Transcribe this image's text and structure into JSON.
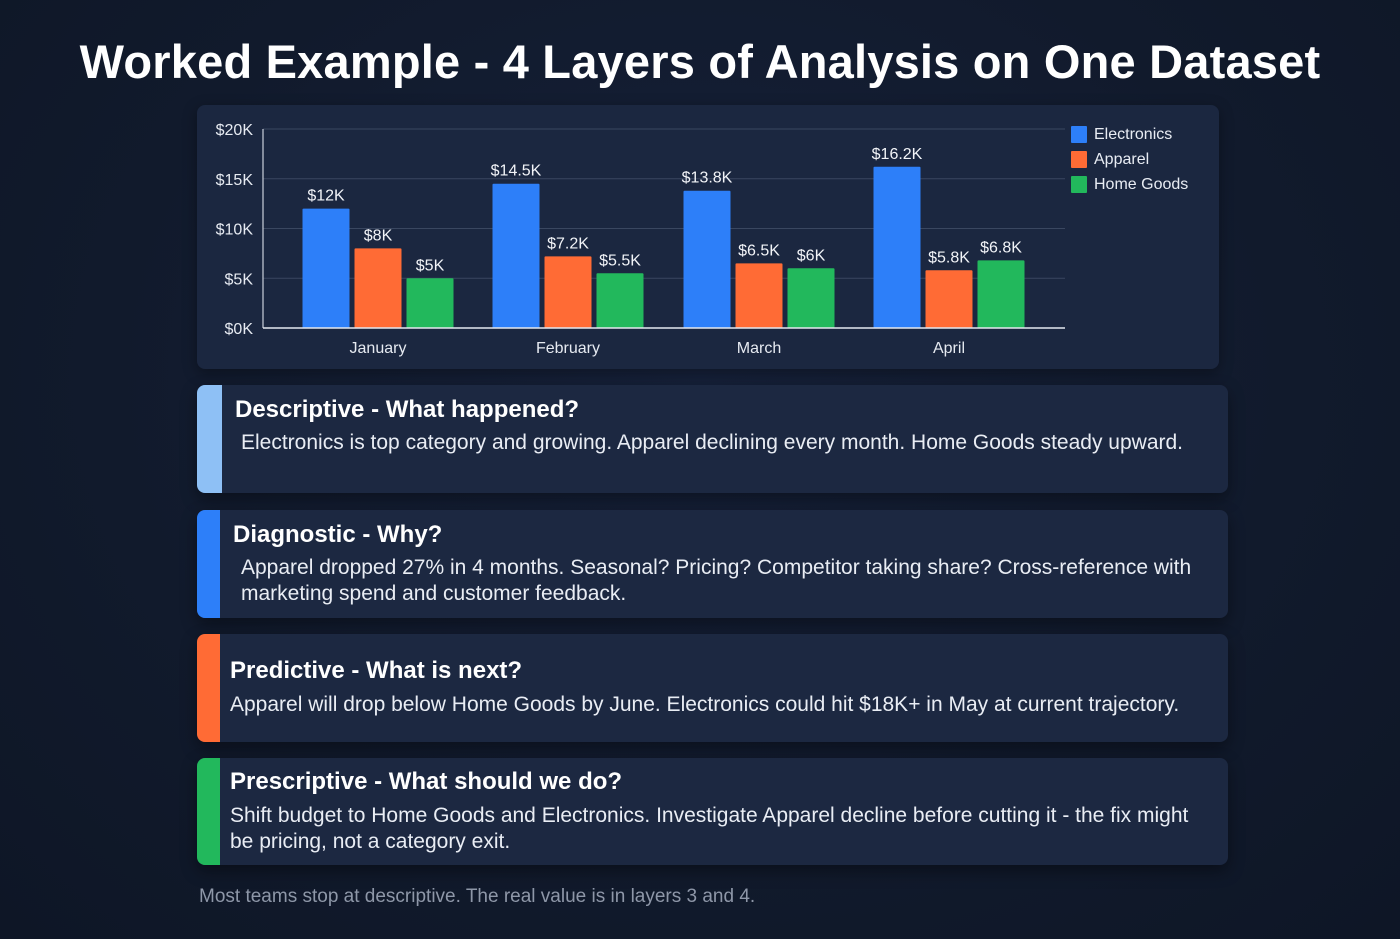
{
  "title": "Worked Example - 4 Layers of Analysis on One Dataset",
  "colors": {
    "background": "#111a2c",
    "panel": "#1b2740",
    "electronics": "#2d7ff9",
    "apparel": "#ff6b35",
    "home_goods": "#22b85c",
    "descriptive_accent": "#8ec0f5",
    "diagnostic_accent": "#2d7ff9",
    "predictive_accent": "#ff6b35",
    "prescriptive_accent": "#22b85c"
  },
  "chart_data": {
    "type": "bar",
    "title": "",
    "xlabel": "",
    "ylabel": "",
    "categories": [
      "January",
      "February",
      "March",
      "April"
    ],
    "series": [
      {
        "name": "Electronics",
        "color": "#2d7ff9",
        "values": [
          12000,
          14500,
          13800,
          16200
        ],
        "labels": [
          "$12K",
          "$14.5K",
          "$13.8K",
          "$16.2K"
        ]
      },
      {
        "name": "Apparel",
        "color": "#ff6b35",
        "values": [
          8000,
          7200,
          6500,
          5800
        ],
        "labels": [
          "$8K",
          "$7.2K",
          "$6.5K",
          "$5.8K"
        ]
      },
      {
        "name": "Home Goods",
        "color": "#22b85c",
        "values": [
          5000,
          5500,
          6000,
          6800
        ],
        "labels": [
          "$5K",
          "$5.5K",
          "$6K",
          "$6.8K"
        ]
      }
    ],
    "ylim": [
      0,
      20000
    ],
    "yticks": [
      0,
      5000,
      10000,
      15000,
      20000
    ],
    "ytick_labels": [
      "$0K",
      "$5K",
      "$10K",
      "$15K",
      "$20K"
    ],
    "grid": true,
    "legend_position": "top-right"
  },
  "legend": {
    "items": [
      {
        "label": "Electronics",
        "color": "#2d7ff9"
      },
      {
        "label": "Apparel",
        "color": "#ff6b35"
      },
      {
        "label": "Home Goods",
        "color": "#22b85c"
      }
    ]
  },
  "layers": [
    {
      "title": "Descriptive - What happened?",
      "body": "Electronics is top category and growing. Apparel declining every month. Home Goods steady upward.",
      "accent": "#8ec0f5"
    },
    {
      "title": "Diagnostic - Why?",
      "body": "Apparel dropped 27% in 4 months. Seasonal? Pricing? Competitor taking share? Cross-reference with marketing spend and customer feedback.",
      "accent": "#2d7ff9"
    },
    {
      "title": "Predictive - What is next?",
      "body": "Apparel will drop below Home Goods by June. Electronics could hit $18K+ in May at current trajectory.",
      "accent": "#ff6b35"
    },
    {
      "title": "Prescriptive - What should we do?",
      "body": "Shift budget to Home Goods and Electronics. Investigate Apparel decline before cutting it - the fix might be pricing, not a category exit.",
      "accent": "#22b85c"
    }
  ],
  "footer": "Most teams stop at descriptive. The real value is in layers 3 and 4."
}
